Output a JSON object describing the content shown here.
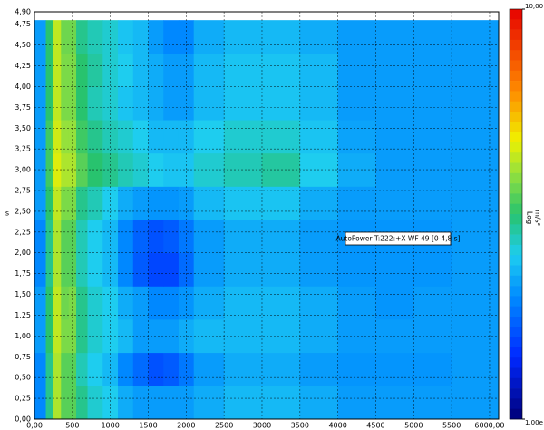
{
  "chart_data": {
    "type": "heatmap",
    "ylabel": "s",
    "annotation": "AutoPower T:222:+X WF 49 [0-4,8 s]",
    "colorbar_scale": "Log",
    "colorbar_unit": "m/s²",
    "log_color": true,
    "clim": [
      0.001,
      10
    ],
    "cticks": [
      {
        "value": 10,
        "label": "10,00"
      },
      {
        "value": 0.001,
        "label": "1,00e"
      }
    ],
    "xlim": [
      0,
      6120
    ],
    "ylim": [
      0,
      4.9
    ],
    "grid": true,
    "xticks": [
      {
        "value": 0,
        "label": "0,00"
      },
      500,
      1000,
      1500,
      2000,
      2500,
      3000,
      3500,
      4000,
      4500,
      5000,
      5500,
      {
        "value": 6000,
        "label": "6000,00"
      }
    ],
    "yticks": [
      {
        "value": 0,
        "label": "0,00"
      },
      {
        "value": 0.25,
        "label": "0,25"
      },
      {
        "value": 0.5,
        "label": "0,50"
      },
      {
        "value": 0.75,
        "label": "0,75"
      },
      {
        "value": 1,
        "label": "1,00"
      },
      {
        "value": 1.25,
        "label": "1,25"
      },
      {
        "value": 1.5,
        "label": "1,50"
      },
      {
        "value": 1.75,
        "label": "1,75"
      },
      {
        "value": 2,
        "label": "2,00"
      },
      {
        "value": 2.25,
        "label": "2,25"
      },
      {
        "value": 2.5,
        "label": "2,50"
      },
      {
        "value": 2.75,
        "label": "2,75"
      },
      {
        "value": 3,
        "label": "3,00"
      },
      {
        "value": 3.25,
        "label": "3,25"
      },
      {
        "value": 3.5,
        "label": "3,50"
      },
      {
        "value": 3.75,
        "label": "3,75"
      },
      {
        "value": 4,
        "label": "4,00"
      },
      {
        "value": 4.25,
        "label": "4,25"
      },
      {
        "value": 4.5,
        "label": "4,50"
      },
      {
        "value": 4.75,
        "label": "4,75"
      },
      {
        "value": 4.9,
        "label": "4,90"
      }
    ],
    "xbins": [
      0,
      150,
      250,
      350,
      450,
      550,
      700,
      900,
      1100,
      1300,
      1500,
      1700,
      1900,
      2100,
      2500,
      3000,
      3500,
      4000,
      4500,
      5000,
      5500,
      6120
    ],
    "ybins": [
      0,
      0.4,
      0.8,
      1.2,
      1.6,
      2.0,
      2.4,
      2.8,
      3.2,
      3.6,
      4.0,
      4.4,
      4.8
    ],
    "z": [
      [
        0.015,
        0.08,
        0.3,
        0.15,
        0.15,
        0.08,
        0.05,
        0.04,
        0.025,
        0.02,
        0.02,
        0.02,
        0.02,
        0.025,
        0.03,
        0.03,
        0.025,
        0.02,
        0.02,
        0.02,
        0.02
      ],
      [
        0.015,
        0.08,
        0.3,
        0.15,
        0.15,
        0.06,
        0.04,
        0.03,
        0.015,
        0.01,
        0.007,
        0.008,
        0.012,
        0.02,
        0.025,
        0.025,
        0.02,
        0.018,
        0.018,
        0.018,
        0.02
      ],
      [
        0.02,
        0.1,
        0.35,
        0.2,
        0.2,
        0.08,
        0.05,
        0.04,
        0.03,
        0.02,
        0.02,
        0.02,
        0.025,
        0.03,
        0.03,
        0.03,
        0.025,
        0.02,
        0.02,
        0.02,
        0.02
      ],
      [
        0.02,
        0.1,
        0.35,
        0.18,
        0.2,
        0.08,
        0.05,
        0.04,
        0.025,
        0.02,
        0.015,
        0.015,
        0.018,
        0.025,
        0.03,
        0.03,
        0.025,
        0.02,
        0.018,
        0.02,
        0.02
      ],
      [
        0.015,
        0.08,
        0.3,
        0.15,
        0.15,
        0.06,
        0.04,
        0.03,
        0.015,
        0.008,
        0.006,
        0.006,
        0.01,
        0.02,
        0.025,
        0.025,
        0.02,
        0.018,
        0.018,
        0.018,
        0.02
      ],
      [
        0.015,
        0.08,
        0.3,
        0.15,
        0.15,
        0.06,
        0.04,
        0.03,
        0.015,
        0.009,
        0.007,
        0.008,
        0.012,
        0.02,
        0.025,
        0.025,
        0.02,
        0.018,
        0.018,
        0.018,
        0.02
      ],
      [
        0.02,
        0.1,
        0.35,
        0.2,
        0.2,
        0.08,
        0.06,
        0.04,
        0.025,
        0.02,
        0.018,
        0.018,
        0.02,
        0.03,
        0.035,
        0.035,
        0.025,
        0.02,
        0.02,
        0.02,
        0.02
      ],
      [
        0.02,
        0.12,
        0.45,
        0.3,
        0.3,
        0.15,
        0.1,
        0.08,
        0.06,
        0.05,
        0.04,
        0.035,
        0.035,
        0.05,
        0.06,
        0.07,
        0.04,
        0.025,
        0.02,
        0.02,
        0.02
      ],
      [
        0.02,
        0.12,
        0.4,
        0.25,
        0.25,
        0.12,
        0.08,
        0.06,
        0.05,
        0.04,
        0.03,
        0.03,
        0.03,
        0.04,
        0.05,
        0.05,
        0.035,
        0.022,
        0.02,
        0.02,
        0.02
      ],
      [
        0.02,
        0.1,
        0.35,
        0.2,
        0.2,
        0.1,
        0.06,
        0.05,
        0.035,
        0.03,
        0.025,
        0.02,
        0.02,
        0.03,
        0.035,
        0.035,
        0.03,
        0.02,
        0.02,
        0.02,
        0.02
      ],
      [
        0.02,
        0.1,
        0.35,
        0.2,
        0.2,
        0.1,
        0.07,
        0.05,
        0.04,
        0.03,
        0.025,
        0.02,
        0.02,
        0.03,
        0.035,
        0.035,
        0.03,
        0.02,
        0.02,
        0.02,
        0.02
      ],
      [
        0.02,
        0.1,
        0.35,
        0.18,
        0.18,
        0.08,
        0.06,
        0.05,
        0.035,
        0.03,
        0.02,
        0.015,
        0.015,
        0.025,
        0.03,
        0.03,
        0.025,
        0.02,
        0.02,
        0.02,
        0.02
      ]
    ]
  }
}
